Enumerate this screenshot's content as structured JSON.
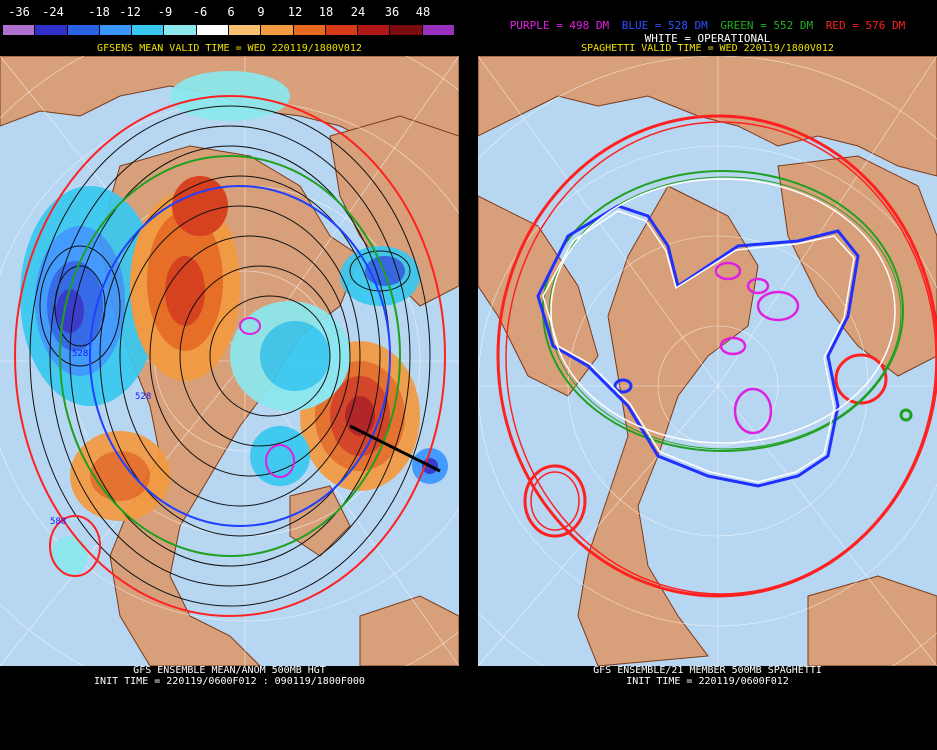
{
  "colorbar": {
    "labels": [
      "-36",
      "-24",
      "-18",
      "-12",
      "-9",
      "-6",
      "6",
      "9",
      "12",
      "18",
      "24",
      "36",
      "48"
    ],
    "colors": [
      "#b070d0",
      "#3030c8",
      "#2a62e6",
      "#3a96ff",
      "#38c8f0",
      "#8ae8ee",
      "#ffffff",
      "#f8c070",
      "#f49a40",
      "#e86a20",
      "#d63a18",
      "#b01818",
      "#7a0c10",
      "#9a30c0"
    ]
  },
  "left": {
    "title": "GFSENS MEAN VALID TIME = WED 220119/1800V012",
    "contour_labels": [
      "528",
      "528",
      "588"
    ],
    "footer_line1": "GFS ENSEMBLE MEAN/ANOM 500MB HGT",
    "footer_line2": "INIT TIME = 220119/0600F012 : 090119/1800F000"
  },
  "right": {
    "legend": [
      {
        "text": "PURPLE = 498 DM",
        "color": "#e020e0"
      },
      {
        "text": "BLUE = 528 DM",
        "color": "#3050ff"
      },
      {
        "text": "GREEN = 552 DM",
        "color": "#20b020"
      },
      {
        "text": "RED = 576 DM",
        "color": "#ff2020"
      }
    ],
    "operational": "WHITE = OPERATIONAL",
    "title": "SPAGHETTI VALID TIME = WED 220119/1800V012",
    "footer_line1": "GFS ENSEMBLE/21 MEMBER 500MB SPAGHETTI",
    "footer_line2": "INIT TIME = 220119/0600F012"
  },
  "map_colors": {
    "ocean": "#b7d6f2",
    "land": "#d8a07a",
    "coast": "#7a3a1a",
    "grid": "#ffffff"
  }
}
